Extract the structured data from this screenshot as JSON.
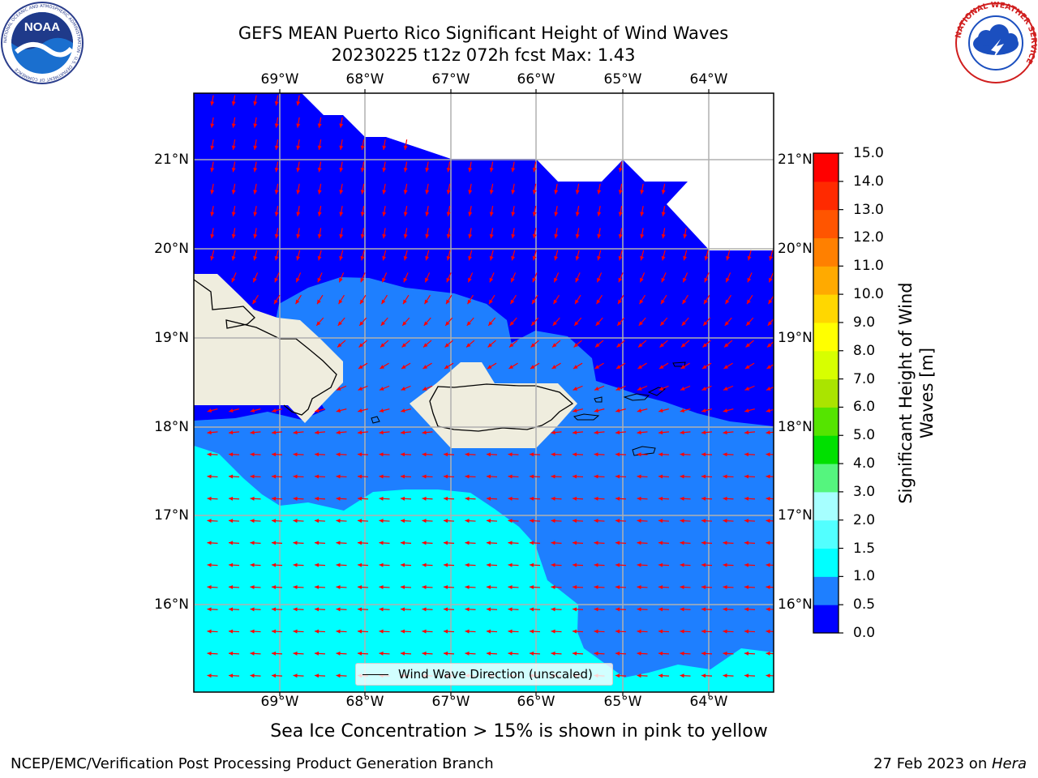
{
  "title": {
    "line1": "GEFS MEAN Puerto Rico Significant Height of Wind Waves",
    "line2": "20230225 t12z 072h fcst   Max: 1.43"
  },
  "logos": {
    "noaa": {
      "text": "NOAA",
      "ring_text": "NATIONAL OCEANIC AND ATMOSPHERIC ADMINISTRATION · U.S. DEPARTMENT OF COMMERCE",
      "icon": "noaa-logo-icon"
    },
    "nws": {
      "ring_text": "NATIONAL WEATHER SERVICE",
      "icon": "nws-logo-icon"
    }
  },
  "map": {
    "lon_ticks": [
      "69°W",
      "68°W",
      "67°W",
      "66°W",
      "65°W",
      "64°W"
    ],
    "lat_ticks": [
      "21°N",
      "20°N",
      "19°N",
      "18°N",
      "17°N",
      "16°N"
    ],
    "lon_range": [
      -70.0,
      -63.25
    ],
    "lat_range": [
      15.0,
      21.75
    ],
    "grid": true,
    "land_color": "#efedde",
    "arrow_color": "#ff0000",
    "arrow_direction": "predominantly westward, turning to south-southwest in the northern waters"
  },
  "legend": {
    "label": "Wind Wave Direction (unscaled)",
    "placement": "bottom-center"
  },
  "colorbar": {
    "label": "Significant Height of Wind Waves [m]",
    "ticks": [
      "0.0",
      "0.5",
      "1.0",
      "1.5",
      "2.0",
      "3.0",
      "4.0",
      "5.0",
      "6.0",
      "7.0",
      "8.0",
      "9.0",
      "10.0",
      "11.0",
      "12.0",
      "13.0",
      "14.0",
      "15.0"
    ],
    "colors": [
      "#0000ff",
      "#1e7fff",
      "#00ffff",
      "#52ffff",
      "#a6ffff",
      "#55f57e",
      "#00e000",
      "#55e400",
      "#aae400",
      "#d7ff00",
      "#ffff00",
      "#ffd700",
      "#ffaa00",
      "#ff8000",
      "#ff5500",
      "#ff2a00",
      "#ff0000"
    ]
  },
  "caption": "Sea Ice Concentration > 15% is shown in pink to yellow",
  "footer": {
    "left": "NCEP/EMC/Verification Post Processing Product Generation Branch",
    "right_prefix": "27 Feb 2023 on ",
    "right_host": "Hera"
  }
}
